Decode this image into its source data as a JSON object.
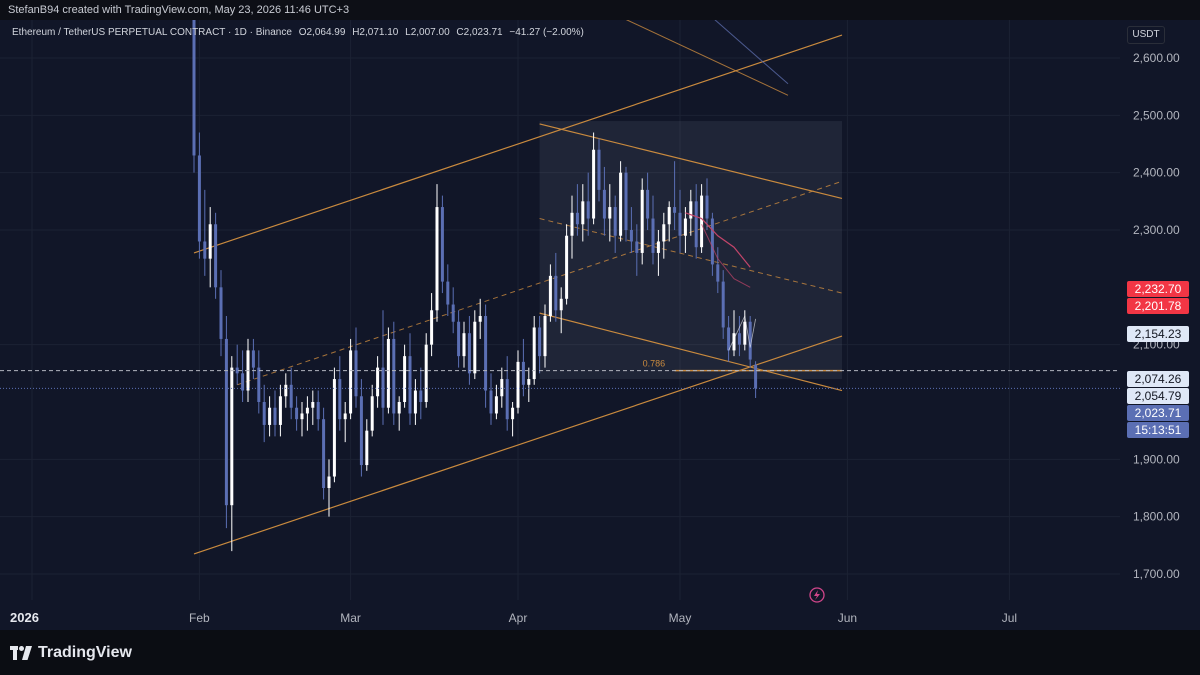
{
  "header": {
    "credit": "StefanB94 created with TradingView.com, May 23, 2026 11:46 UTC+3"
  },
  "legend": {
    "symbol": "Ethereum / TetherUS PERPETUAL CONTRACT · 1D · Binance",
    "open": "O2,064.99",
    "high": "H2,071.10",
    "low": "L2,007.00",
    "close": "C2,023.71",
    "change": "−41.27 (−2.00%)"
  },
  "currency_label": "USDT",
  "price_tags": [
    {
      "label": "2,232.70",
      "bg": "#f23645",
      "fg": "#ffffff",
      "price": 2232.7
    },
    {
      "label": "2,201.78",
      "bg": "#f23645",
      "fg": "#ffffff",
      "price": 2201.78
    },
    {
      "label": "2,154.23",
      "bg": "#dfe8f7",
      "fg": "#131722",
      "price": 2154.23
    },
    {
      "label": "2,074.26",
      "bg": "#dfe8f7",
      "fg": "#131722",
      "price": 2074.26
    },
    {
      "label": "2,054.79",
      "bg": "#dfe8f7",
      "fg": "#131722",
      "price": 2054.79
    },
    {
      "label": "2,023.71",
      "bg": "#5b6fb4",
      "fg": "#ffffff",
      "price": 2023.71
    },
    {
      "label": "15:13:51",
      "bg": "#5b6fb4",
      "fg": "#ffffff",
      "price": null
    }
  ],
  "fib_label": "0.786",
  "brand": "TradingView",
  "colors": {
    "up": "#ffffff",
    "down": "#5b6fb4",
    "channel": "#c98a3e",
    "grid": "#1c2233",
    "text": "#b2b5be"
  },
  "chart_data": {
    "type": "candlestick",
    "y_ticks": [
      "2,600.00",
      "2,500.00",
      "2,400.00",
      "2,300.00",
      "2,100.00",
      "1,900.00",
      "1,800.00",
      "1,700.00"
    ],
    "y_tick_values": [
      2600,
      2500,
      2400,
      2300,
      2100,
      1900,
      1800,
      1700
    ],
    "x_ticks": [
      "2026",
      "Feb",
      "Mar",
      "Apr",
      "May",
      "Jun",
      "Jul"
    ],
    "x_tick_dates": [
      "2026-01-01",
      "2026-02-01",
      "2026-03-01",
      "2026-04-01",
      "2026-05-01",
      "2026-06-01",
      "2026-07-01"
    ],
    "ylim": [
      1640,
      2680
    ],
    "xlim": [
      "2025-12-31",
      "2026-07-25"
    ],
    "first_candle_date": "2026-01-31",
    "candles": [
      [
        2680,
        2700,
        2400,
        2430
      ],
      [
        2430,
        2470,
        2250,
        2280
      ],
      [
        2280,
        2370,
        2220,
        2250
      ],
      [
        2250,
        2340,
        2200,
        2310
      ],
      [
        2310,
        2330,
        2180,
        2200
      ],
      [
        2200,
        2230,
        2080,
        2110
      ],
      [
        2110,
        2150,
        1780,
        1820
      ],
      [
        1820,
        2080,
        1740,
        2060
      ],
      [
        2060,
        2100,
        2030,
        2050
      ],
      [
        2050,
        2090,
        2000,
        2020
      ],
      [
        2020,
        2110,
        2000,
        2090
      ],
      [
        2090,
        2110,
        2040,
        2060
      ],
      [
        2060,
        2090,
        1980,
        2000
      ],
      [
        2000,
        2030,
        1930,
        1960
      ],
      [
        1960,
        2010,
        1940,
        1990
      ],
      [
        1990,
        2020,
        1940,
        1960
      ],
      [
        1960,
        2030,
        1940,
        2010
      ],
      [
        2010,
        2050,
        1990,
        2030
      ],
      [
        2030,
        2060,
        1970,
        1990
      ],
      [
        1990,
        2010,
        1950,
        1970
      ],
      [
        1970,
        2000,
        1940,
        1980
      ],
      [
        1980,
        2010,
        1950,
        1990
      ],
      [
        1990,
        2020,
        1960,
        2000
      ],
      [
        2000,
        2020,
        1950,
        1970
      ],
      [
        1970,
        1990,
        1830,
        1850
      ],
      [
        1850,
        1900,
        1800,
        1870
      ],
      [
        1870,
        2060,
        1860,
        2040
      ],
      [
        2040,
        2080,
        1950,
        1970
      ],
      [
        1970,
        2000,
        1930,
        1980
      ],
      [
        1980,
        2110,
        1970,
        2090
      ],
      [
        2090,
        2130,
        1990,
        2010
      ],
      [
        2010,
        2040,
        1870,
        1890
      ],
      [
        1890,
        1970,
        1880,
        1950
      ],
      [
        1950,
        2030,
        1940,
        2010
      ],
      [
        2010,
        2080,
        1990,
        2060
      ],
      [
        2060,
        2160,
        1960,
        1990
      ],
      [
        1990,
        2130,
        1980,
        2110
      ],
      [
        2110,
        2140,
        1960,
        1980
      ],
      [
        1980,
        2010,
        1950,
        2000
      ],
      [
        2000,
        2100,
        1990,
        2080
      ],
      [
        2080,
        2120,
        1960,
        1980
      ],
      [
        1980,
        2040,
        1960,
        2020
      ],
      [
        2020,
        2060,
        1970,
        2000
      ],
      [
        2000,
        2120,
        1990,
        2100
      ],
      [
        2100,
        2190,
        2080,
        2160
      ],
      [
        2160,
        2380,
        2140,
        2340
      ],
      [
        2340,
        2360,
        2190,
        2210
      ],
      [
        2210,
        2240,
        2150,
        2170
      ],
      [
        2170,
        2200,
        2120,
        2140
      ],
      [
        2140,
        2160,
        2060,
        2080
      ],
      [
        2080,
        2140,
        2060,
        2120
      ],
      [
        2120,
        2150,
        2030,
        2050
      ],
      [
        2050,
        2160,
        2040,
        2140
      ],
      [
        2140,
        2180,
        2110,
        2150
      ],
      [
        2150,
        2170,
        1990,
        2020
      ],
      [
        2020,
        2050,
        1960,
        1980
      ],
      [
        1980,
        2030,
        1970,
        2010
      ],
      [
        2010,
        2060,
        1990,
        2040
      ],
      [
        2040,
        2080,
        1950,
        1970
      ],
      [
        1970,
        2000,
        1940,
        1990
      ],
      [
        1990,
        2090,
        1980,
        2070
      ],
      [
        2070,
        2110,
        2010,
        2030
      ],
      [
        2030,
        2060,
        2000,
        2040
      ],
      [
        2040,
        2150,
        2030,
        2130
      ],
      [
        2130,
        2150,
        2050,
        2080
      ],
      [
        2080,
        2170,
        2060,
        2150
      ],
      [
        2150,
        2240,
        2140,
        2220
      ],
      [
        2220,
        2260,
        2140,
        2160
      ],
      [
        2160,
        2200,
        2120,
        2180
      ],
      [
        2180,
        2310,
        2170,
        2290
      ],
      [
        2290,
        2360,
        2250,
        2330
      ],
      [
        2330,
        2380,
        2290,
        2310
      ],
      [
        2310,
        2380,
        2280,
        2350
      ],
      [
        2350,
        2400,
        2290,
        2320
      ],
      [
        2320,
        2470,
        2310,
        2440
      ],
      [
        2440,
        2460,
        2350,
        2370
      ],
      [
        2370,
        2410,
        2290,
        2320
      ],
      [
        2320,
        2380,
        2280,
        2340
      ],
      [
        2340,
        2360,
        2260,
        2290
      ],
      [
        2290,
        2420,
        2280,
        2400
      ],
      [
        2400,
        2410,
        2280,
        2300
      ],
      [
        2300,
        2340,
        2260,
        2280
      ],
      [
        2280,
        2310,
        2220,
        2260
      ],
      [
        2260,
        2390,
        2240,
        2370
      ],
      [
        2370,
        2400,
        2300,
        2320
      ],
      [
        2320,
        2360,
        2240,
        2260
      ],
      [
        2260,
        2300,
        2220,
        2280
      ],
      [
        2280,
        2330,
        2250,
        2310
      ],
      [
        2310,
        2350,
        2280,
        2340
      ],
      [
        2340,
        2420,
        2300,
        2330
      ],
      [
        2330,
        2370,
        2260,
        2290
      ],
      [
        2290,
        2340,
        2260,
        2320
      ],
      [
        2320,
        2370,
        2290,
        2350
      ],
      [
        2350,
        2380,
        2250,
        2270
      ],
      [
        2270,
        2380,
        2260,
        2360
      ],
      [
        2360,
        2390,
        2300,
        2320
      ],
      [
        2320,
        2330,
        2220,
        2240
      ],
      [
        2240,
        2270,
        2190,
        2210
      ],
      [
        2210,
        2230,
        2110,
        2130
      ],
      [
        2130,
        2150,
        2070,
        2090
      ],
      [
        2090,
        2160,
        2080,
        2120
      ],
      [
        2120,
        2150,
        2080,
        2100
      ],
      [
        2100,
        2160,
        2090,
        2140
      ],
      [
        2140,
        2150,
        2060,
        2074
      ],
      [
        2064.99,
        2071.1,
        2007.0,
        2023.71
      ]
    ],
    "last_price": 2023.71,
    "fib_level": {
      "label": "0.786",
      "price": 2054.79
    }
  }
}
